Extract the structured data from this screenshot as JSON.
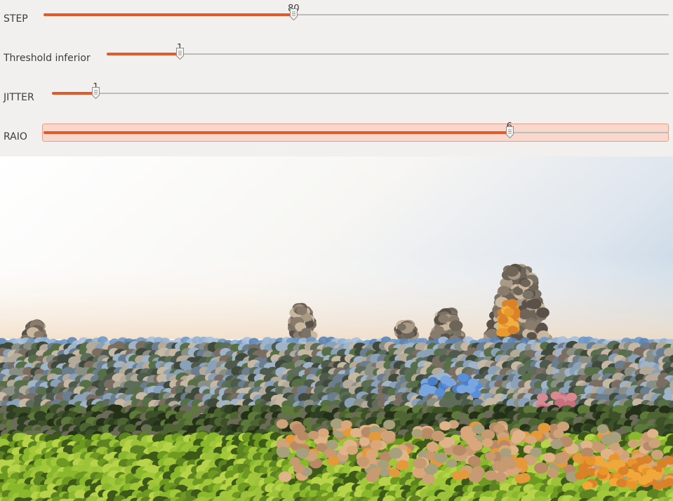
{
  "sliders": [
    {
      "id": "step",
      "label": "STEP",
      "value": "80",
      "fraction": 0.4
    },
    {
      "id": "threshold",
      "label": "Threshold inferior",
      "value": "1",
      "fraction": 0.13
    },
    {
      "id": "jitter",
      "label": "JITTER",
      "value": "1",
      "fraction": 0.071
    },
    {
      "id": "raio",
      "label": "RAIO",
      "value": "6",
      "fraction": 0.745,
      "focused": true
    }
  ],
  "colors": {
    "accent": "#e05b2c",
    "track": "#bdbcb9",
    "focus_bg": "#f8d8cd",
    "window_bg": "#f1f0ee"
  },
  "preview": {
    "description_icon": "pointillism-landscape-image"
  }
}
